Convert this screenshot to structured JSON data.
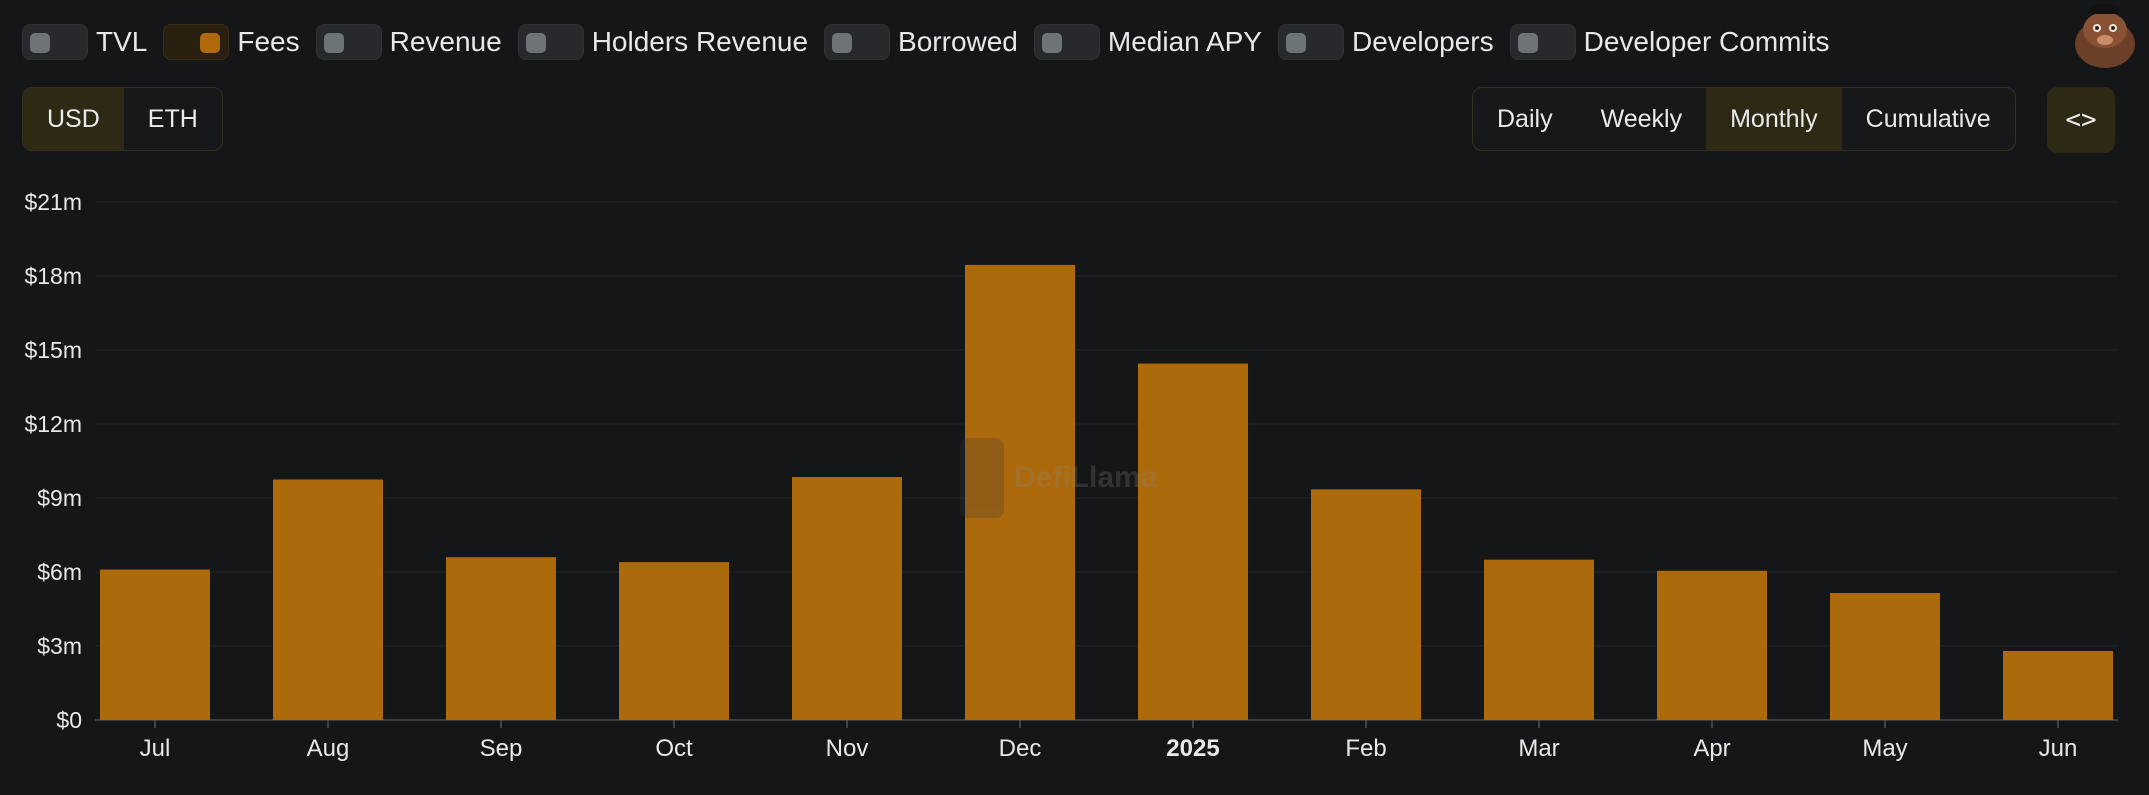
{
  "toggles": [
    {
      "label": "TVL",
      "on": false
    },
    {
      "label": "Fees",
      "on": true
    },
    {
      "label": "Revenue",
      "on": false
    },
    {
      "label": "Holders Revenue",
      "on": false
    },
    {
      "label": "Borrowed",
      "on": false
    },
    {
      "label": "Median APY",
      "on": false
    },
    {
      "label": "Developers",
      "on": false
    },
    {
      "label": "Developer Commits",
      "on": false
    }
  ],
  "currency": {
    "options": [
      "USD",
      "ETH"
    ],
    "selected": "USD"
  },
  "period": {
    "options": [
      "Daily",
      "Weekly",
      "Monthly",
      "Cumulative"
    ],
    "selected": "Monthly"
  },
  "embed_label": "<>",
  "watermark_text": "DefiLlama",
  "colors": {
    "bar": "#ad6a0b",
    "accent": "#b06a0c",
    "background": "#151618"
  },
  "chart_data": {
    "type": "bar",
    "categories": [
      "Jul",
      "Aug",
      "Sep",
      "Oct",
      "Nov",
      "Dec",
      "2025",
      "Feb",
      "Mar",
      "Apr",
      "May",
      "Jun"
    ],
    "series": [
      {
        "values": [
          6.1,
          9.75,
          6.6,
          6.4,
          9.85,
          18.45,
          14.45,
          9.35,
          6.5,
          6.05,
          5.15,
          2.8
        ]
      }
    ],
    "unit": "m",
    "ylim": [
      0,
      21
    ],
    "yticks": [
      0,
      3,
      6,
      9,
      12,
      15,
      18,
      21
    ],
    "ytick_labels": [
      "$0",
      "$3m",
      "$6m",
      "$9m",
      "$12m",
      "$15m",
      "$18m",
      "$21m"
    ],
    "bold_category": "2025",
    "grid": true
  }
}
